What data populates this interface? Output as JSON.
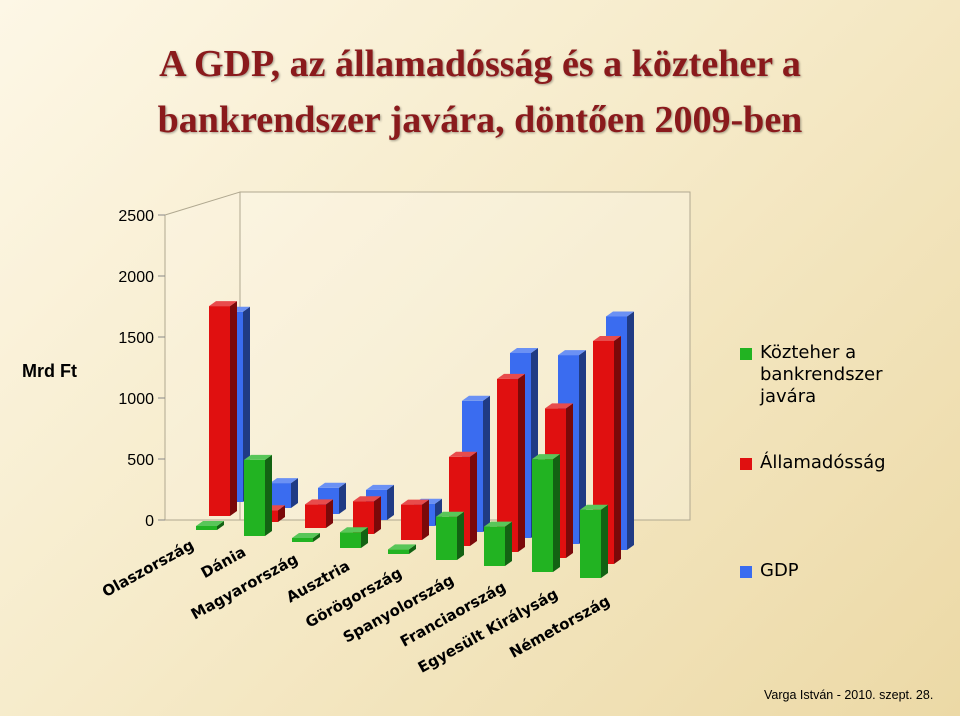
{
  "title": {
    "line1": "A GDP, az államadósság és a közteher a",
    "line2": "bankrendszer javára, döntően 2009-ben"
  },
  "y_unit": "Mrd Ft",
  "footer": "Varga István - 2010. szept. 28.",
  "legend": [
    {
      "label": "Közteher a\nbankrendszer\njavára",
      "color": "#22b322"
    },
    {
      "label": "Államadósság",
      "color": "#e01010"
    },
    {
      "label": "GDP",
      "color": "#3a6cf0"
    }
  ],
  "chart_data": {
    "type": "bar",
    "subtype": "3d-grouped",
    "categories": [
      "Olaszország",
      "Dánia",
      "Magyarország",
      "Ausztria",
      "Görögország",
      "Spanyolország",
      "Franciaország",
      "Egyesült Királyság",
      "Németország"
    ],
    "series": [
      {
        "name": "Közteher a bankrendszer javára",
        "color": "#22b322",
        "values": [
          10,
          580,
          25,
          120,
          35,
          330,
          300,
          860,
          520
        ]
      },
      {
        "name": "Államadósság",
        "color": "#e01010",
        "values": [
          1600,
          90,
          180,
          250,
          270,
          680,
          1320,
          1140,
          1700
        ]
      },
      {
        "name": "GDP",
        "color": "#3a6cf0",
        "values": [
          1450,
          190,
          200,
          230,
          170,
          1000,
          1410,
          1440,
          1780
        ]
      }
    ],
    "y_ticks": [
      "0",
      "500",
      "1000",
      "1500",
      "2000",
      "2500"
    ],
    "ylim": [
      0,
      2500
    ],
    "ylabel": "Mrd Ft",
    "legend_position": "right",
    "grid": false
  }
}
